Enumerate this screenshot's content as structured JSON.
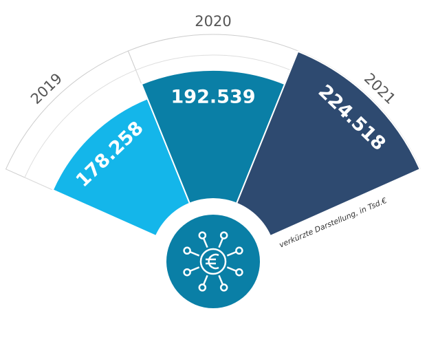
{
  "chart_data": {
    "type": "radial-bar",
    "categories": [
      "2019",
      "2020",
      "2021"
    ],
    "values": [
      178258,
      192539,
      224518
    ],
    "value_labels": [
      "178.258",
      "192.539",
      "224.518"
    ],
    "colors": [
      "#14b6ea",
      "#0a7fa6",
      "#2e4a70"
    ],
    "rlim": [
      78000,
      225000
    ],
    "annotation": "verkürzte Darstellung, in Tsd.€"
  }
}
